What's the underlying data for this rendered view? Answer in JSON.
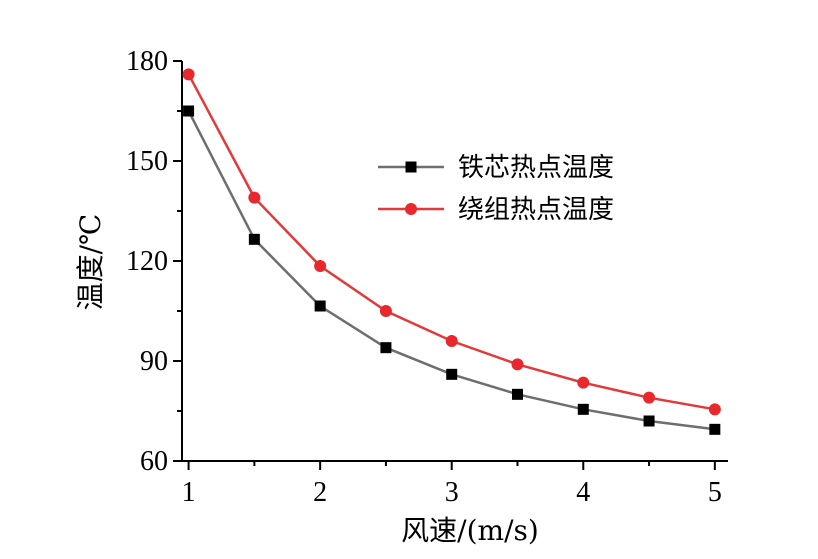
{
  "chart_data": {
    "type": "line",
    "title": "",
    "xlabel": "风速/(m/s)",
    "ylabel": "温度/℃",
    "xlim": [
      0.95,
      5.1
    ],
    "ylim": [
      60,
      180
    ],
    "xticks": [
      1,
      2,
      3,
      4,
      5
    ],
    "yticks": [
      60,
      90,
      120,
      150,
      180
    ],
    "grid": false,
    "legend_position": "upper-right",
    "x": [
      1,
      1.5,
      2,
      2.5,
      3,
      3.5,
      4,
      4.5,
      5
    ],
    "series": [
      {
        "name": "铁芯热点温度",
        "color": "#6e6e6e",
        "marker_color": "#000000",
        "marker": "square",
        "values": [
          165,
          126.5,
          106.5,
          94,
          86,
          80,
          75.5,
          72,
          69.5
        ]
      },
      {
        "name": "绕组热点温度",
        "color": "#e23a3a",
        "marker_color": "#e8282d",
        "marker": "circle",
        "values": [
          176,
          139,
          118.5,
          105,
          96,
          89,
          83.5,
          79,
          75.5
        ]
      }
    ]
  }
}
